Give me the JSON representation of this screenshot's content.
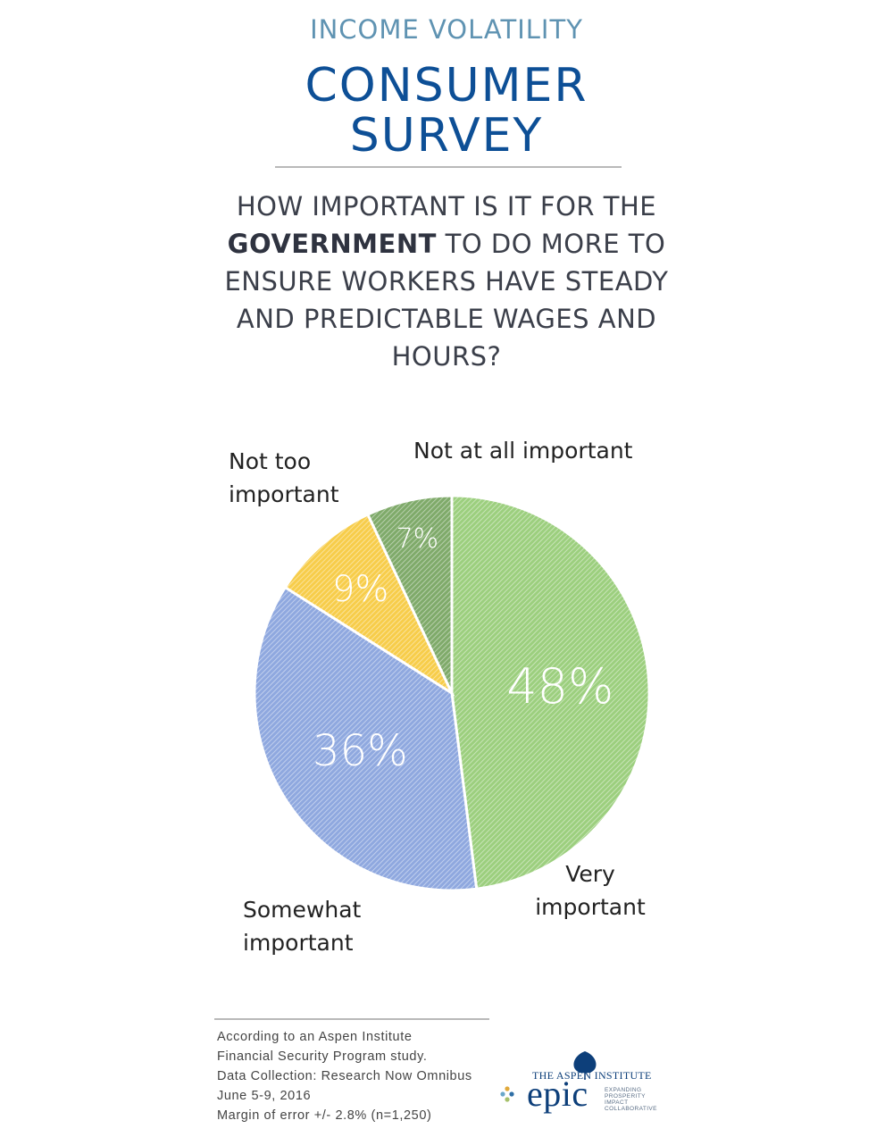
{
  "header": {
    "kicker": "INCOME VOLATILITY",
    "title_line1": "CONSUMER",
    "title_line2": "SURVEY",
    "question_pre": "HOW IMPORTANT IS IT FOR THE",
    "question_bold": "GOVERNMENT",
    "question_post": "TO DO MORE TO ENSURE WORKERS HAVE STEADY AND PREDICTABLE WAGES AND HOURS?"
  },
  "chart_data": {
    "type": "pie",
    "slices": [
      {
        "label_line1": "Very",
        "label_line2": "important",
        "value": 48,
        "value_label": "48%",
        "color": "#9ccf7e"
      },
      {
        "label_line1": "Somewhat",
        "label_line2": "important",
        "value": 36,
        "value_label": "36%",
        "color": "#8fa8df"
      },
      {
        "label_line1": "Not too",
        "label_line2": "important",
        "value": 9,
        "value_label": "9%",
        "color": "#f7cd4a"
      },
      {
        "label_line1": "Not at all important",
        "label_line2": "",
        "value": 7,
        "value_label": "7%",
        "color": "#7faa6a"
      }
    ]
  },
  "footer": {
    "line1": "According to an Aspen Institute",
    "line2": "Financial Security Program study.",
    "line3": "Data Collection: Research Now Omnibus",
    "line4": "June 5-9, 2016",
    "line5": "Margin of error +/- 2.8% (n=1,250)",
    "logo_org": "THE ASPEN INSTITUTE",
    "logo_name": "epic",
    "logo_tag_1": "EXPANDING",
    "logo_tag_2": "PROSPERITY",
    "logo_tag_3": "IMPACT",
    "logo_tag_4": "COLLABORATIVE"
  }
}
